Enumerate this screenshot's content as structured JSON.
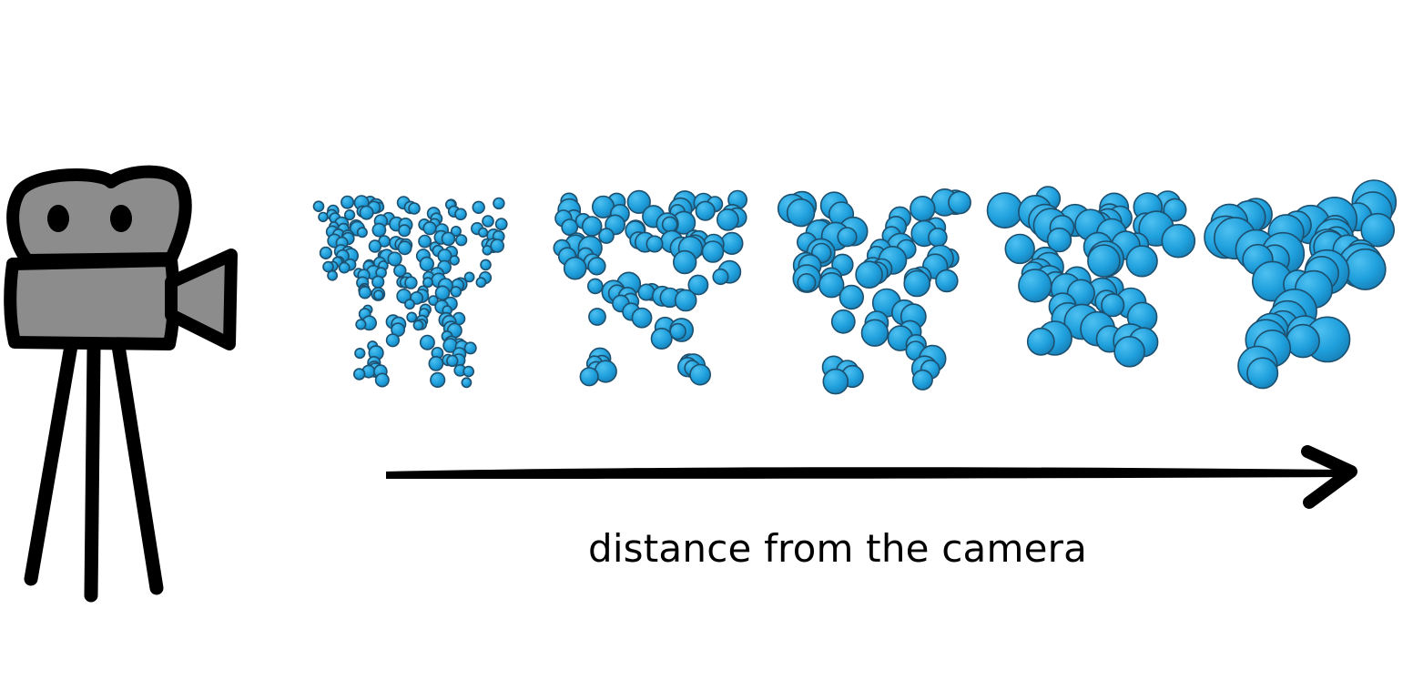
{
  "caption": "distance from the camera",
  "camera": {
    "icon": "video-camera-icon",
    "body_color": "#8c8c8c",
    "outline_color": "#000000"
  },
  "arrow": {
    "icon": "long-arrow-right-icon",
    "color": "#000000"
  },
  "molecules": {
    "icon": "protein-surface-icon",
    "fill_color": "#1fa0dd",
    "stroke_color": "#1d4f6e",
    "count": 5
  }
}
